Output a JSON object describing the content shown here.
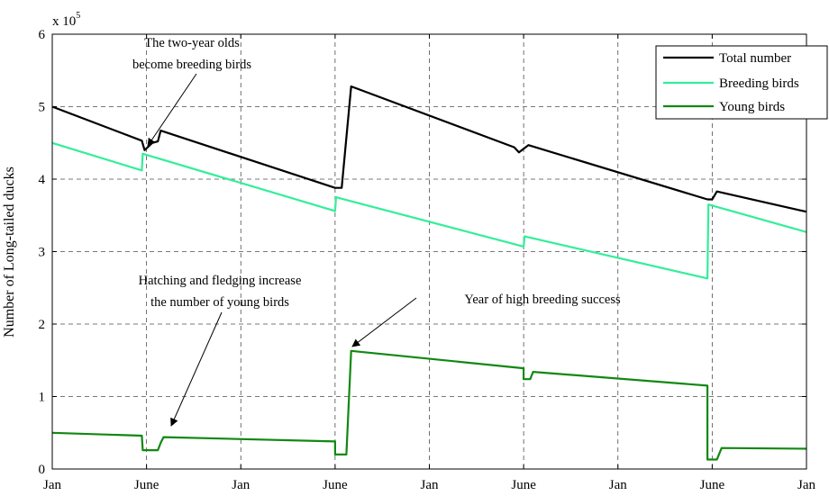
{
  "chart_data": {
    "type": "line",
    "ylabel": "Number of Long-tailed ducks",
    "y_exponent_label": "x 10",
    "y_exponent_power": "5",
    "xlim": [
      0,
      8
    ],
    "ylim": [
      0,
      6
    ],
    "grid": true,
    "legend_position": "top-right",
    "x_ticks": [
      {
        "x": 0,
        "label": "Jan"
      },
      {
        "x": 1,
        "label": "June"
      },
      {
        "x": 2,
        "label": "Jan"
      },
      {
        "x": 3,
        "label": "June"
      },
      {
        "x": 4,
        "label": "Jan"
      },
      {
        "x": 5,
        "label": "June"
      },
      {
        "x": 6,
        "label": "Jan"
      },
      {
        "x": 7,
        "label": "June"
      },
      {
        "x": 8,
        "label": "Jan"
      }
    ],
    "y_ticks": [
      {
        "y": 0,
        "label": "0"
      },
      {
        "y": 1,
        "label": "1"
      },
      {
        "y": 2,
        "label": "2"
      },
      {
        "y": 3,
        "label": "3"
      },
      {
        "y": 4,
        "label": "4"
      },
      {
        "y": 5,
        "label": "5"
      },
      {
        "y": 6,
        "label": "6"
      }
    ],
    "series": [
      {
        "name": "Total number",
        "color": "#000000",
        "points": [
          [
            0,
            5.0
          ],
          [
            0.95,
            4.53
          ],
          [
            0.98,
            4.4
          ],
          [
            1.06,
            4.5
          ],
          [
            1.12,
            4.52
          ],
          [
            1.15,
            4.67
          ],
          [
            3.0,
            3.88
          ],
          [
            3.07,
            3.88
          ],
          [
            3.17,
            5.28
          ],
          [
            4.9,
            4.44
          ],
          [
            4.95,
            4.37
          ],
          [
            5.05,
            4.47
          ],
          [
            6.95,
            3.72
          ],
          [
            7.0,
            3.72
          ],
          [
            7.05,
            3.83
          ],
          [
            8.0,
            3.55
          ]
        ]
      },
      {
        "name": "Breeding birds",
        "color": "#33ee99",
        "points": [
          [
            0,
            4.5
          ],
          [
            0.95,
            4.12
          ],
          [
            0.96,
            4.35
          ],
          [
            3.0,
            3.56
          ],
          [
            3.01,
            3.75
          ],
          [
            5.0,
            3.07
          ],
          [
            5.01,
            3.21
          ],
          [
            6.95,
            2.63
          ],
          [
            6.96,
            3.65
          ],
          [
            8.0,
            3.27
          ]
        ]
      },
      {
        "name": "Young birds",
        "color": "#118811",
        "points": [
          [
            0,
            0.5
          ],
          [
            0.95,
            0.46
          ],
          [
            0.96,
            0.26
          ],
          [
            1.12,
            0.26
          ],
          [
            1.15,
            0.36
          ],
          [
            1.18,
            0.44
          ],
          [
            3.0,
            0.38
          ],
          [
            3.0,
            0.2
          ],
          [
            3.12,
            0.2
          ],
          [
            3.17,
            1.63
          ],
          [
            5.0,
            1.39
          ],
          [
            5.0,
            1.24
          ],
          [
            5.07,
            1.24
          ],
          [
            5.1,
            1.34
          ],
          [
            6.95,
            1.15
          ],
          [
            6.95,
            0.13
          ],
          [
            7.05,
            0.13
          ],
          [
            7.1,
            0.29
          ],
          [
            8.0,
            0.28
          ]
        ]
      }
    ],
    "annotations": [
      {
        "lines": [
          "The two-year olds",
          "become breeding birds"
        ]
      },
      {
        "lines": [
          "Hatching and fledging increase",
          "the number of young birds"
        ]
      },
      {
        "lines": [
          "Year of high breeding success"
        ]
      }
    ]
  }
}
